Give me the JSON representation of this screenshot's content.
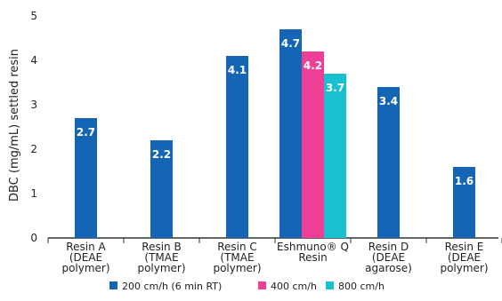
{
  "chart_data": {
    "type": "bar",
    "ylabel": "DBC (mg/mL) settled resin",
    "xlabel": "",
    "ylim": [
      0,
      5
    ],
    "yticks": [
      "0",
      "1",
      "2",
      "3",
      "4",
      "5"
    ],
    "grid": false,
    "legend_position": "bottom",
    "categories": [
      [
        "Resin A",
        "(DEAE",
        "polymer)"
      ],
      [
        "Resin B",
        "(TMAE",
        "polymer)"
      ],
      [
        "Resin C",
        "(TMAE",
        "polymer)"
      ],
      [
        "Eshmuno® Q",
        "Resin"
      ],
      [
        "Resin D",
        "(DEAE",
        "agarose)"
      ],
      [
        "Resin E",
        "(DEAE",
        "polymer)"
      ]
    ],
    "series": [
      {
        "name": "200 cm/h (6 min RT)",
        "color": "#1565b5",
        "values": [
          2.7,
          2.2,
          4.1,
          4.7,
          3.4,
          1.6
        ],
        "labels": [
          "2.7",
          "2.2",
          "4.1",
          "4.7",
          "3.4",
          "1.6"
        ]
      },
      {
        "name": "400 cm/h",
        "color": "#ef3e96",
        "values": [
          null,
          null,
          null,
          4.2,
          null,
          null
        ],
        "labels": [
          null,
          null,
          null,
          "4.2",
          null,
          null
        ]
      },
      {
        "name": "800 cm/h",
        "color": "#19c0d2",
        "values": [
          null,
          null,
          null,
          3.7,
          null,
          null
        ],
        "labels": [
          null,
          null,
          null,
          "3.7",
          null,
          null
        ]
      }
    ]
  }
}
